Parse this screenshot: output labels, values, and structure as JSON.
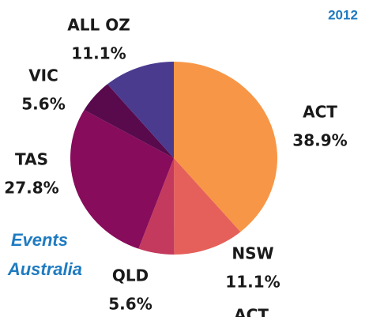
{
  "chart_data": {
    "type": "pie",
    "title": "2012",
    "annotations": [
      "Events",
      "Australia",
      "ACT"
    ],
    "categories": [
      "ACT",
      "NSW",
      "QLD",
      "TAS",
      "VIC",
      "ALL OZ"
    ],
    "values": [
      38.9,
      11.1,
      5.6,
      27.8,
      5.6,
      11.1
    ],
    "value_labels": [
      "38.9%",
      "11.1%",
      "5.6%",
      "27.8%",
      "5.6%",
      "11.1%"
    ],
    "colors": [
      "#f79646",
      "#e5605a",
      "#c43a5e",
      "#870c5b",
      "#580a4d",
      "#4b3b8f"
    ]
  }
}
